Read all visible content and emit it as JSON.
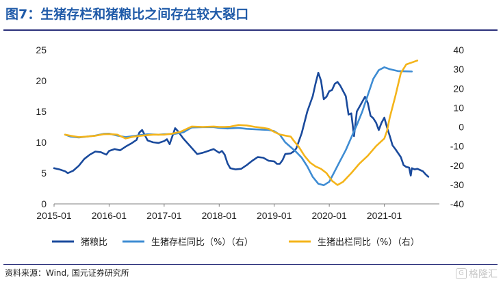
{
  "title": "图7：生猪存栏和猪粮比之间存在较大裂口",
  "source": "资料来源：Wind, 国元证券研究所",
  "watermark": "格隆汇",
  "chart_data": {
    "type": "line",
    "x_ticks": [
      "2015-01",
      "2016-01",
      "2017-01",
      "2018-01",
      "2019-01",
      "2020-01",
      "2021-01"
    ],
    "x_range": [
      2015.0,
      2022.0
    ],
    "y_left": {
      "range": [
        0,
        25
      ],
      "ticks": [
        0,
        5,
        10,
        15,
        20,
        25
      ]
    },
    "y_right": {
      "range": [
        -40,
        40
      ],
      "ticks": [
        -40,
        -30,
        -20,
        -10,
        0,
        10,
        20,
        30,
        40
      ]
    },
    "grid": false,
    "legend_position": "bottom",
    "series": [
      {
        "name": "猪粮比",
        "axis": "left",
        "color": "#1a4a9c",
        "points": [
          [
            2015.0,
            5.8
          ],
          [
            2015.1,
            5.6
          ],
          [
            2015.2,
            5.3
          ],
          [
            2015.25,
            5.0
          ],
          [
            2015.35,
            5.4
          ],
          [
            2015.45,
            6.2
          ],
          [
            2015.55,
            7.3
          ],
          [
            2015.65,
            8.0
          ],
          [
            2015.75,
            8.5
          ],
          [
            2015.85,
            8.4
          ],
          [
            2015.95,
            8.0
          ],
          [
            2016.0,
            8.6
          ],
          [
            2016.1,
            8.9
          ],
          [
            2016.2,
            8.7
          ],
          [
            2016.3,
            9.3
          ],
          [
            2016.4,
            9.8
          ],
          [
            2016.5,
            10.4
          ],
          [
            2016.55,
            11.6
          ],
          [
            2016.6,
            12.0
          ],
          [
            2016.7,
            10.3
          ],
          [
            2016.8,
            10.0
          ],
          [
            2016.9,
            9.9
          ],
          [
            2017.0,
            10.2
          ],
          [
            2017.05,
            10.5
          ],
          [
            2017.1,
            9.7
          ],
          [
            2017.2,
            12.3
          ],
          [
            2017.25,
            11.8
          ],
          [
            2017.35,
            10.6
          ],
          [
            2017.45,
            9.6
          ],
          [
            2017.55,
            8.6
          ],
          [
            2017.6,
            8.1
          ],
          [
            2017.7,
            8.3
          ],
          [
            2017.8,
            8.6
          ],
          [
            2017.9,
            8.9
          ],
          [
            2018.0,
            8.3
          ],
          [
            2018.05,
            8.6
          ],
          [
            2018.1,
            8.0
          ],
          [
            2018.15,
            6.6
          ],
          [
            2018.2,
            5.8
          ],
          [
            2018.3,
            5.6
          ],
          [
            2018.4,
            5.7
          ],
          [
            2018.5,
            6.3
          ],
          [
            2018.6,
            7.0
          ],
          [
            2018.7,
            7.6
          ],
          [
            2018.8,
            7.5
          ],
          [
            2018.9,
            7.0
          ],
          [
            2019.0,
            6.9
          ],
          [
            2019.05,
            6.5
          ],
          [
            2019.1,
            6.5
          ],
          [
            2019.15,
            7.1
          ],
          [
            2019.2,
            8.1
          ],
          [
            2019.3,
            8.2
          ],
          [
            2019.35,
            8.5
          ],
          [
            2019.4,
            9.0
          ],
          [
            2019.5,
            11.5
          ],
          [
            2019.6,
            15.0
          ],
          [
            2019.7,
            17.5
          ],
          [
            2019.75,
            19.5
          ],
          [
            2019.8,
            21.3
          ],
          [
            2019.85,
            20.0
          ],
          [
            2019.9,
            17.0
          ],
          [
            2019.95,
            17.4
          ],
          [
            2020.0,
            18.3
          ],
          [
            2020.05,
            18.5
          ],
          [
            2020.1,
            19.5
          ],
          [
            2020.15,
            19.8
          ],
          [
            2020.2,
            19.2
          ],
          [
            2020.3,
            17.5
          ],
          [
            2020.35,
            14.5
          ],
          [
            2020.4,
            14.7
          ],
          [
            2020.45,
            11.0
          ],
          [
            2020.5,
            15.0
          ],
          [
            2020.6,
            16.6
          ],
          [
            2020.65,
            17.4
          ],
          [
            2020.7,
            16.4
          ],
          [
            2020.75,
            14.3
          ],
          [
            2020.8,
            13.9
          ],
          [
            2020.85,
            13.2
          ],
          [
            2020.9,
            12.0
          ],
          [
            2020.95,
            13.2
          ],
          [
            2021.0,
            14.0
          ],
          [
            2021.05,
            12.4
          ],
          [
            2021.1,
            11.0
          ],
          [
            2021.15,
            9.5
          ],
          [
            2021.2,
            8.9
          ],
          [
            2021.3,
            7.6
          ],
          [
            2021.35,
            6.3
          ],
          [
            2021.4,
            6.0
          ],
          [
            2021.45,
            5.9
          ],
          [
            2021.48,
            4.6
          ],
          [
            2021.5,
            5.8
          ],
          [
            2021.55,
            5.6
          ],
          [
            2021.6,
            5.7
          ],
          [
            2021.65,
            5.5
          ],
          [
            2021.7,
            5.3
          ],
          [
            2021.75,
            4.8
          ],
          [
            2021.8,
            4.4
          ]
        ]
      },
      {
        "name": "生猪存栏同比（%）（右）",
        "axis": "right",
        "color": "#3e8cd3",
        "points": [
          [
            2015.2,
            -4.0
          ],
          [
            2015.3,
            -5.0
          ],
          [
            2015.45,
            -5.5
          ],
          [
            2015.6,
            -5.0
          ],
          [
            2015.75,
            -4.5
          ],
          [
            2015.9,
            -3.6
          ],
          [
            2016.0,
            -3.5
          ],
          [
            2016.15,
            -4.5
          ],
          [
            2016.3,
            -5.3
          ],
          [
            2016.5,
            -4.5
          ],
          [
            2016.7,
            -3.8
          ],
          [
            2016.9,
            -4.0
          ],
          [
            2017.0,
            -3.8
          ],
          [
            2017.2,
            -3.6
          ],
          [
            2017.35,
            -2.8
          ],
          [
            2017.5,
            -0.3
          ],
          [
            2017.7,
            -0.1
          ],
          [
            2017.9,
            -0.1
          ],
          [
            2018.0,
            -0.5
          ],
          [
            2018.15,
            -0.8
          ],
          [
            2018.35,
            -0.5
          ],
          [
            2018.5,
            -1.0
          ],
          [
            2018.7,
            -1.3
          ],
          [
            2018.9,
            -1.6
          ],
          [
            2019.0,
            -2.2
          ],
          [
            2019.1,
            -4.0
          ],
          [
            2019.2,
            -8.0
          ],
          [
            2019.3,
            -10.5
          ],
          [
            2019.4,
            -13.0
          ],
          [
            2019.5,
            -16.0
          ],
          [
            2019.6,
            -20.5
          ],
          [
            2019.7,
            -26.0
          ],
          [
            2019.8,
            -29.5
          ],
          [
            2019.9,
            -30.3
          ],
          [
            2020.0,
            -28.5
          ],
          [
            2020.1,
            -23.0
          ],
          [
            2020.2,
            -17.5
          ],
          [
            2020.3,
            -12.0
          ],
          [
            2020.4,
            -5.5
          ],
          [
            2020.5,
            1.0
          ],
          [
            2020.6,
            8.0
          ],
          [
            2020.7,
            16.5
          ],
          [
            2020.8,
            25.0
          ],
          [
            2020.9,
            29.5
          ],
          [
            2021.0,
            31.0
          ],
          [
            2021.1,
            30.0
          ],
          [
            2021.25,
            29.0
          ],
          [
            2021.5,
            28.8
          ]
        ]
      },
      {
        "name": "生猪出栏同比（%）（右）",
        "axis": "right",
        "color": "#f4b41a",
        "points": [
          [
            2015.2,
            -4.0
          ],
          [
            2015.3,
            -4.6
          ],
          [
            2015.45,
            -5.3
          ],
          [
            2015.6,
            -5.0
          ],
          [
            2015.75,
            -4.6
          ],
          [
            2015.9,
            -3.8
          ],
          [
            2016.0,
            -3.7
          ],
          [
            2016.15,
            -4.0
          ],
          [
            2016.3,
            -6.0
          ],
          [
            2016.45,
            -5.0
          ],
          [
            2016.6,
            -4.5
          ],
          [
            2016.8,
            -4.0
          ],
          [
            2017.0,
            -4.0
          ],
          [
            2017.15,
            -3.5
          ],
          [
            2017.3,
            -2.5
          ],
          [
            2017.5,
            0.2
          ],
          [
            2017.7,
            0.0
          ],
          [
            2017.9,
            0.2
          ],
          [
            2018.0,
            0.0
          ],
          [
            2018.1,
            0.0
          ],
          [
            2018.2,
            0.1
          ],
          [
            2018.35,
            1.0
          ],
          [
            2018.5,
            0.8
          ],
          [
            2018.65,
            0.0
          ],
          [
            2018.8,
            -0.5
          ],
          [
            2018.9,
            -1.0
          ],
          [
            2019.0,
            -2.6
          ],
          [
            2019.1,
            -3.9
          ],
          [
            2019.2,
            -4.5
          ],
          [
            2019.3,
            -5.0
          ],
          [
            2019.35,
            -7.0
          ],
          [
            2019.45,
            -10.5
          ],
          [
            2019.55,
            -15.0
          ],
          [
            2019.65,
            -18.5
          ],
          [
            2019.75,
            -20.5
          ],
          [
            2019.85,
            -21.8
          ],
          [
            2019.95,
            -24.0
          ],
          [
            2020.05,
            -28.0
          ],
          [
            2020.15,
            -30.2
          ],
          [
            2020.25,
            -28.5
          ],
          [
            2020.4,
            -24.0
          ],
          [
            2020.55,
            -19.0
          ],
          [
            2020.7,
            -15.0
          ],
          [
            2020.85,
            -10.0
          ],
          [
            2021.0,
            -6.0
          ],
          [
            2021.05,
            -2.0
          ],
          [
            2021.1,
            5.0
          ],
          [
            2021.2,
            16.0
          ],
          [
            2021.3,
            28.0
          ],
          [
            2021.4,
            32.5
          ],
          [
            2021.5,
            33.5
          ],
          [
            2021.6,
            34.5
          ]
        ]
      }
    ]
  }
}
